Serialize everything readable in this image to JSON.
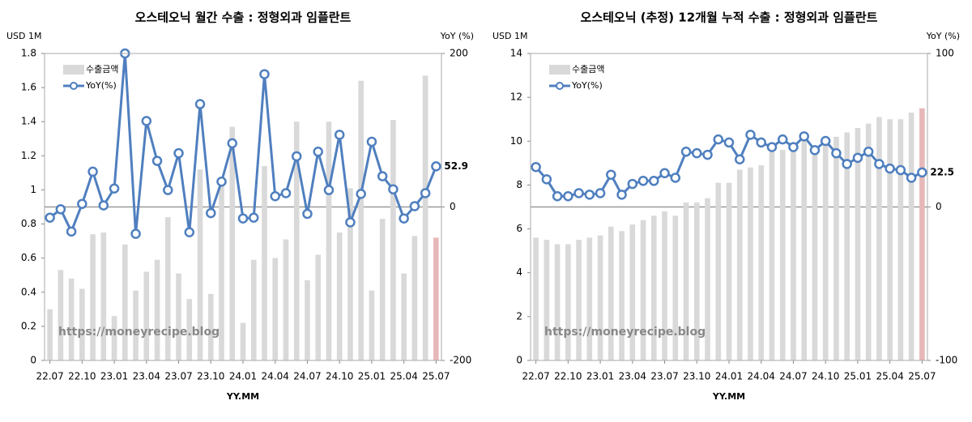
{
  "chart_data": [
    {
      "type": "bar_line",
      "title": "오스테오닉 월간 수출 : 정형외과 임플란트",
      "y_label": "USD 1M",
      "y2_label": "YoY (%)",
      "x_label": "YY.MM",
      "annotation": "https://moneyrecipe.blog",
      "categories": [
        "22.07",
        null,
        null,
        "22.10",
        null,
        null,
        "23.01",
        null,
        null,
        "23.04",
        null,
        null,
        "23.07",
        null,
        null,
        "23.10",
        null,
        null,
        "24.01",
        null,
        null,
        "24.04",
        null,
        null,
        "24.07",
        null,
        null,
        "24.10",
        null,
        null,
        "25.01",
        null,
        null,
        "25.04",
        null,
        null,
        "25.07"
      ],
      "series": [
        {
          "name": "수출금액",
          "type": "bar",
          "color": "#d9d9d9",
          "highlight_color": "#e6b8b7",
          "values": [
            0.3,
            0.53,
            0.48,
            0.42,
            0.74,
            0.75,
            0.26,
            0.68,
            0.41,
            0.52,
            0.59,
            0.84,
            0.51,
            0.36,
            1.12,
            0.39,
            1.07,
            1.37,
            0.22,
            0.59,
            1.14,
            0.6,
            0.71,
            1.4,
            0.47,
            0.62,
            1.4,
            0.75,
            1.01,
            1.64,
            0.41,
            0.83,
            1.41,
            0.51,
            0.73,
            1.67,
            0.72
          ]
        },
        {
          "name": "YoY(%)",
          "type": "line",
          "axis": "y2",
          "color": "#4f7fbf",
          "values": [
            -14,
            -3,
            -32,
            4,
            46,
            2,
            24,
            200,
            -35,
            112,
            60,
            22,
            70,
            -33,
            134,
            -8,
            33,
            83,
            -15,
            -14,
            173,
            14,
            18,
            66,
            -9,
            72,
            22,
            94,
            -20,
            17,
            85,
            40,
            23,
            -15,
            1,
            18,
            52.9
          ],
          "last_label_color": "#e02020"
        }
      ],
      "ylim": [
        0,
        1.8
      ],
      "yticks": [
        0,
        0.2,
        0.4,
        0.6,
        0.8,
        1,
        1.2,
        1.4,
        1.6,
        1.8
      ],
      "y2lim": [
        -200,
        200
      ],
      "y2ticks": [
        -200,
        0,
        200
      ],
      "zero_line": true
    },
    {
      "type": "bar_line",
      "title": "오스테오닉 (추정) 12개월 누적 수출 : 정형외과 임플란트",
      "y_label": "USD 1M",
      "y2_label": "YoY (%)",
      "x_label": "YY.MM",
      "annotation": "https://moneyrecipe.blog",
      "categories": [
        "22.07",
        null,
        null,
        "22.10",
        null,
        null,
        "23.01",
        null,
        null,
        "23.04",
        null,
        null,
        "23.07",
        null,
        null,
        "23.10",
        null,
        null,
        "24.01",
        null,
        null,
        "24.04",
        null,
        null,
        "24.07",
        null,
        null,
        "24.10",
        null,
        null,
        "25.01",
        null,
        null,
        "25.04",
        null,
        null,
        "25.07"
      ],
      "series": [
        {
          "name": "수출금액",
          "type": "bar",
          "color": "#d9d9d9",
          "highlight_color": "#e6b8b7",
          "values": [
            5.6,
            5.5,
            5.3,
            5.3,
            5.5,
            5.6,
            5.7,
            6.1,
            5.9,
            6.2,
            6.4,
            6.6,
            6.8,
            6.6,
            7.2,
            7.2,
            7.4,
            8.1,
            8.1,
            8.7,
            8.8,
            8.9,
            9.5,
            9.6,
            9.7,
            10.0,
            9.8,
            10.0,
            10.2,
            10.4,
            10.6,
            10.8,
            11.1,
            11.0,
            11.0,
            11.3,
            11.5
          ]
        },
        {
          "name": "YoY(%)",
          "type": "line",
          "axis": "y2",
          "color": "#4f7fbf",
          "values": [
            26,
            18,
            7,
            7,
            9,
            8,
            9,
            21,
            8,
            15,
            17,
            17,
            22,
            19,
            36,
            35,
            34,
            44,
            42,
            31,
            47,
            42,
            39,
            44,
            39,
            46,
            37,
            43,
            35,
            28,
            32,
            36,
            28,
            25,
            24,
            19,
            22.5
          ],
          "last_label_color": "#e02020"
        }
      ],
      "ylim": [
        0,
        14
      ],
      "yticks": [
        0,
        2,
        4,
        6,
        8,
        10,
        12,
        14
      ],
      "y2lim": [
        -100,
        100
      ],
      "y2ticks": [
        -100,
        0,
        100
      ],
      "zero_line": true
    }
  ]
}
